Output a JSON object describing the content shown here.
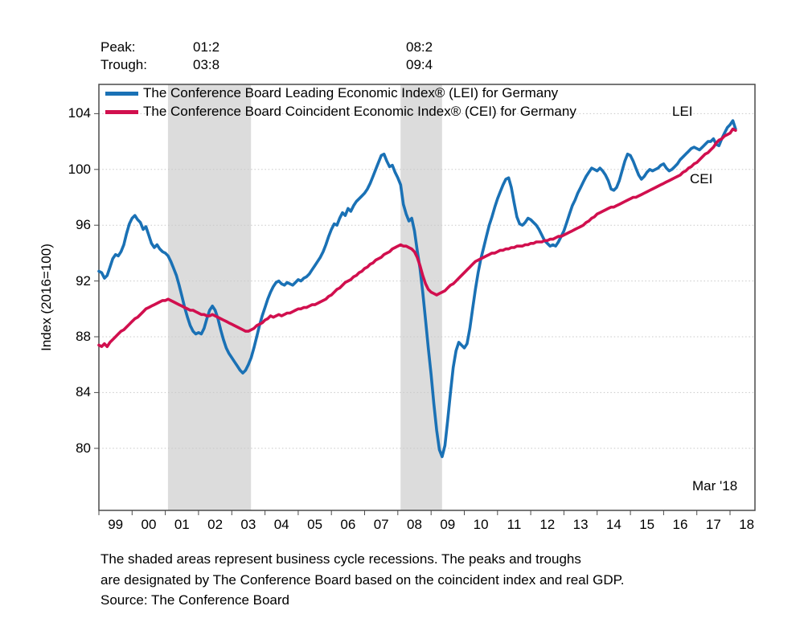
{
  "header": {
    "peak_label": "Peak:",
    "trough_label": "Trough:",
    "col1_peak": "01:2",
    "col1_trough": "03:8",
    "col2_peak": "08:2",
    "col2_trough": "09:4"
  },
  "legend": {
    "lei": {
      "label": "The Conference Board Leading Economic Index® (LEI) for Germany",
      "color": "#1a71b5"
    },
    "cei": {
      "label": "The Conference Board Coincident Economic Index® (CEI) for Germany",
      "color": "#d10f4e"
    }
  },
  "annotations": {
    "lei_tag": "LEI",
    "cei_tag": "CEI",
    "last_point_label": "Mar '18"
  },
  "y_axis": {
    "title": "Index (2016=100)",
    "ticks": [
      80,
      84,
      88,
      92,
      96,
      100,
      104
    ]
  },
  "x_axis": {
    "labels": [
      "99",
      "00",
      "01",
      "02",
      "03",
      "04",
      "05",
      "06",
      "07",
      "08",
      "09",
      "10",
      "11",
      "12",
      "13",
      "14",
      "15",
      "16",
      "17",
      "18"
    ]
  },
  "footnote": {
    "line1": "The shaded areas represent business cycle recessions. The peaks and troughs",
    "line2": "are designated by The Conference Board based on the coincident index and real GDP.",
    "line3": "Source: The Conference Board"
  },
  "colors": {
    "lei_line": "#1a71b5",
    "cei_line": "#d10f4e",
    "recession_shade": "#dcdcdc",
    "gridline": "#c8c8c8",
    "axis": "#4a4a4a",
    "text": "#000000"
  },
  "chart_data": {
    "type": "line",
    "title": "",
    "ylabel": "Index (2016=100)",
    "xlim": [
      1999.0,
      2018.75
    ],
    "ylim": [
      75.55,
      106.1
    ],
    "grid": "dotted-horizontal",
    "legend_position": "top-left-inside",
    "x_start_year": 1999,
    "x_start_month": 1,
    "x_frequency": "monthly",
    "last_observation": "Mar 2018",
    "recessions": [
      {
        "peak": "01:2",
        "trough": "03:8",
        "start": 2001.08,
        "end": 2003.58
      },
      {
        "peak": "08:2",
        "trough": "09:4",
        "start": 2008.08,
        "end": 2009.33
      }
    ],
    "series": [
      {
        "name": "LEI",
        "label": "The Conference Board Leading Economic Index® (LEI) for Germany",
        "color": "#1a71b5",
        "values": [
          92.7,
          92.6,
          92.2,
          92.4,
          93.0,
          93.6,
          93.9,
          93.8,
          94.1,
          94.6,
          95.4,
          96.1,
          96.5,
          96.7,
          96.4,
          96.2,
          95.7,
          95.9,
          95.3,
          94.7,
          94.4,
          94.6,
          94.3,
          94.1,
          94.0,
          93.8,
          93.4,
          92.9,
          92.4,
          91.7,
          90.9,
          90.1,
          89.4,
          88.8,
          88.4,
          88.2,
          88.3,
          88.2,
          88.6,
          89.3,
          89.9,
          90.2,
          89.9,
          89.3,
          88.5,
          87.8,
          87.2,
          86.8,
          86.5,
          86.2,
          85.9,
          85.6,
          85.4,
          85.6,
          86.0,
          86.5,
          87.2,
          88.0,
          88.8,
          89.5,
          90.1,
          90.7,
          91.2,
          91.6,
          91.9,
          92.0,
          91.8,
          91.7,
          91.9,
          91.8,
          91.7,
          91.9,
          92.1,
          92.0,
          92.2,
          92.3,
          92.5,
          92.8,
          93.1,
          93.4,
          93.7,
          94.1,
          94.6,
          95.2,
          95.7,
          96.1,
          96.0,
          96.5,
          96.9,
          96.7,
          97.2,
          97.0,
          97.4,
          97.7,
          97.9,
          98.1,
          98.3,
          98.6,
          99.0,
          99.5,
          100.0,
          100.5,
          101.0,
          101.1,
          100.6,
          100.2,
          100.3,
          99.8,
          99.4,
          98.9,
          97.5,
          96.8,
          96.3,
          96.5,
          95.6,
          94.2,
          92.9,
          91.2,
          89.2,
          87.2,
          85.3,
          83.2,
          81.3,
          79.9,
          79.4,
          80.2,
          82.0,
          84.0,
          85.8,
          87.0,
          87.6,
          87.4,
          87.2,
          87.5,
          88.6,
          90.0,
          91.4,
          92.6,
          93.6,
          94.4,
          95.2,
          96.0,
          96.6,
          97.3,
          97.9,
          98.4,
          98.9,
          99.3,
          99.4,
          98.7,
          97.6,
          96.6,
          96.1,
          96.0,
          96.2,
          96.5,
          96.4,
          96.2,
          96.0,
          95.7,
          95.3,
          94.9,
          94.7,
          94.5,
          94.6,
          94.5,
          94.8,
          95.2,
          95.6,
          96.2,
          96.8,
          97.4,
          97.8,
          98.3,
          98.7,
          99.1,
          99.5,
          99.8,
          100.1,
          100.0,
          99.9,
          100.1,
          99.9,
          99.6,
          99.2,
          98.6,
          98.5,
          98.7,
          99.2,
          99.9,
          100.6,
          101.1,
          101.0,
          100.6,
          100.1,
          99.6,
          99.3,
          99.5,
          99.8,
          100.0,
          99.9,
          100.0,
          100.1,
          100.3,
          100.4,
          100.1,
          99.9,
          100.0,
          100.2,
          100.4,
          100.7,
          100.9,
          101.1,
          101.3,
          101.5,
          101.6,
          101.5,
          101.4,
          101.6,
          101.8,
          102.0,
          102.0,
          102.2,
          101.8,
          101.7,
          102.2,
          102.6,
          103.0,
          103.2,
          103.5,
          102.9
        ]
      },
      {
        "name": "CEI",
        "label": "The Conference Board Coincident Economic Index® (CEI) for Germany",
        "color": "#d10f4e",
        "values": [
          87.4,
          87.3,
          87.5,
          87.3,
          87.6,
          87.8,
          88.0,
          88.2,
          88.4,
          88.5,
          88.7,
          88.9,
          89.1,
          89.3,
          89.4,
          89.6,
          89.8,
          90.0,
          90.1,
          90.2,
          90.3,
          90.4,
          90.5,
          90.6,
          90.6,
          90.7,
          90.6,
          90.5,
          90.4,
          90.3,
          90.2,
          90.1,
          90.0,
          89.9,
          89.9,
          89.8,
          89.7,
          89.6,
          89.6,
          89.5,
          89.5,
          89.6,
          89.5,
          89.4,
          89.3,
          89.2,
          89.1,
          89.0,
          88.9,
          88.8,
          88.7,
          88.6,
          88.5,
          88.4,
          88.4,
          88.5,
          88.6,
          88.8,
          88.9,
          89.0,
          89.2,
          89.3,
          89.5,
          89.4,
          89.5,
          89.6,
          89.5,
          89.6,
          89.7,
          89.7,
          89.8,
          89.9,
          90.0,
          90.0,
          90.1,
          90.1,
          90.2,
          90.3,
          90.3,
          90.4,
          90.5,
          90.6,
          90.7,
          90.9,
          91.0,
          91.2,
          91.4,
          91.5,
          91.7,
          91.9,
          92.0,
          92.1,
          92.3,
          92.4,
          92.6,
          92.7,
          92.9,
          93.0,
          93.2,
          93.3,
          93.5,
          93.6,
          93.7,
          93.9,
          94.0,
          94.1,
          94.3,
          94.4,
          94.5,
          94.6,
          94.5,
          94.5,
          94.4,
          94.3,
          94.1,
          93.7,
          93.1,
          92.4,
          91.8,
          91.4,
          91.2,
          91.1,
          91.0,
          91.1,
          91.2,
          91.3,
          91.5,
          91.7,
          91.8,
          92.0,
          92.2,
          92.4,
          92.6,
          92.8,
          93.0,
          93.2,
          93.4,
          93.5,
          93.6,
          93.7,
          93.8,
          93.9,
          94.0,
          94.0,
          94.1,
          94.2,
          94.2,
          94.3,
          94.3,
          94.4,
          94.4,
          94.5,
          94.5,
          94.5,
          94.6,
          94.6,
          94.7,
          94.7,
          94.8,
          94.8,
          94.8,
          94.9,
          94.9,
          95.0,
          95.0,
          95.1,
          95.2,
          95.2,
          95.3,
          95.4,
          95.5,
          95.6,
          95.7,
          95.8,
          95.9,
          96.0,
          96.2,
          96.3,
          96.5,
          96.6,
          96.8,
          96.9,
          97.0,
          97.1,
          97.2,
          97.3,
          97.3,
          97.4,
          97.5,
          97.6,
          97.7,
          97.8,
          97.9,
          98.0,
          98.0,
          98.1,
          98.2,
          98.3,
          98.4,
          98.5,
          98.6,
          98.7,
          98.8,
          98.9,
          99.0,
          99.1,
          99.2,
          99.3,
          99.4,
          99.5,
          99.6,
          99.8,
          99.9,
          100.1,
          100.2,
          100.4,
          100.5,
          100.7,
          100.9,
          101.1,
          101.2,
          101.4,
          101.6,
          101.9,
          102.1,
          102.2,
          102.4,
          102.5,
          102.6,
          102.9,
          102.8
        ]
      }
    ]
  }
}
